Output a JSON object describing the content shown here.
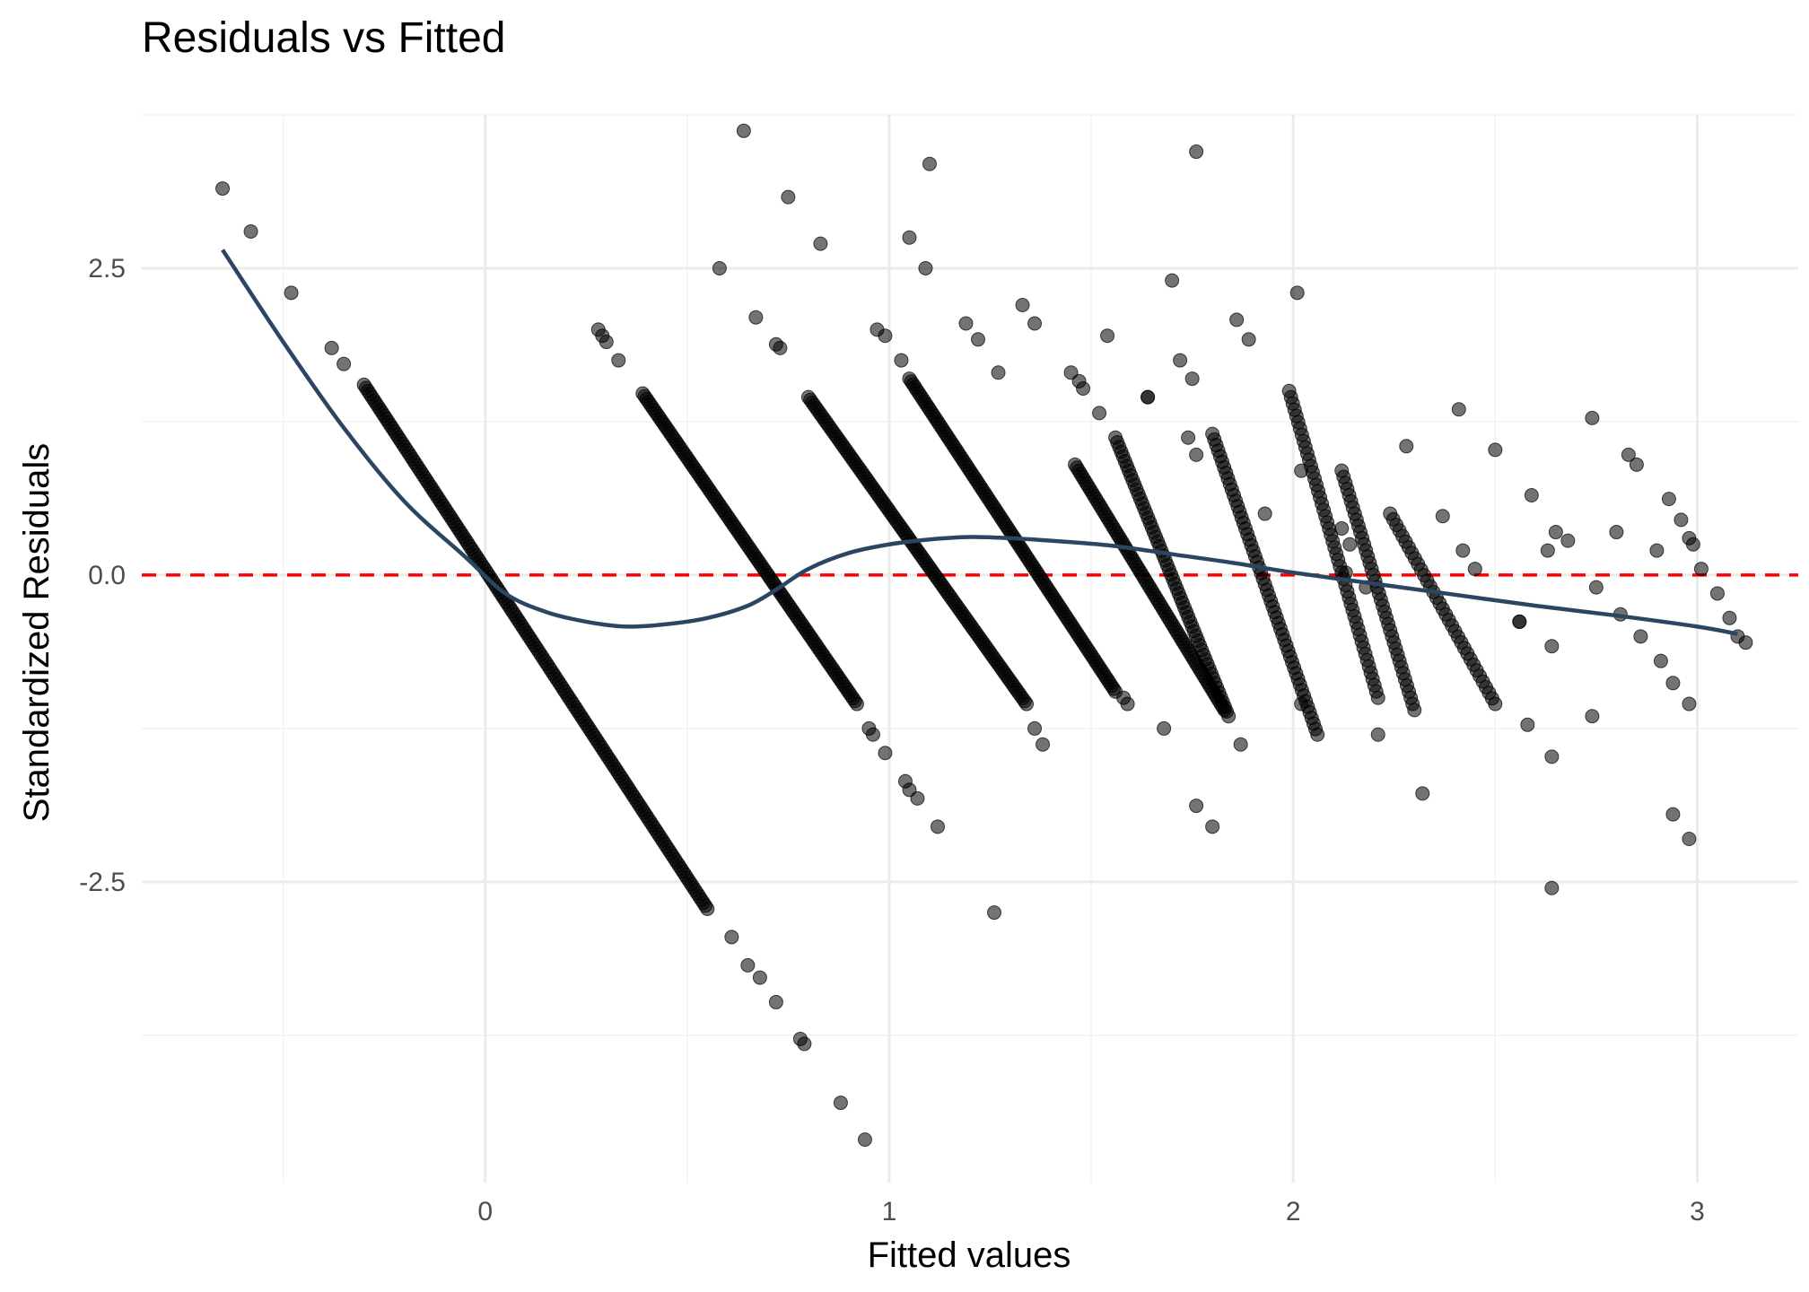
{
  "chart_data": {
    "type": "scatter",
    "title": "Residuals vs Fitted",
    "xlabel": "Fitted values",
    "ylabel": "Standardized Residuals",
    "xlim": [
      -0.85,
      3.25
    ],
    "ylim": [
      -4.95,
      3.75
    ],
    "x_ticks": [
      0,
      1,
      2,
      3
    ],
    "x_tick_labels": [
      "0",
      "1",
      "2",
      "3"
    ],
    "y_ticks": [
      -2.5,
      0,
      2.5
    ],
    "y_tick_labels": [
      "-2.5",
      "0.0",
      "2.5"
    ],
    "grid": true,
    "legend": "none",
    "colors": {
      "points": "#000000",
      "smooth_line": "#2c4563",
      "reference_line": "#ff0000",
      "grid": "#ebebeb"
    },
    "reference_line": {
      "y": 0,
      "style": "dashed"
    },
    "bands": [
      {
        "x0": -0.3,
        "y0": 1.55,
        "x1": 0.55,
        "y1": -2.72,
        "n": 170,
        "extra": [
          [
            -0.65,
            3.15
          ],
          [
            -0.58,
            2.8
          ],
          [
            -0.48,
            2.3
          ],
          [
            -0.38,
            1.85
          ],
          [
            -0.35,
            1.72
          ],
          [
            0.61,
            -2.95
          ],
          [
            0.65,
            -3.18
          ],
          [
            0.68,
            -3.28
          ],
          [
            0.72,
            -3.48
          ],
          [
            0.78,
            -3.78
          ],
          [
            0.79,
            -3.82
          ],
          [
            0.88,
            -4.3
          ],
          [
            0.94,
            -4.6
          ]
        ]
      },
      {
        "x0": 0.39,
        "y0": 1.48,
        "x1": 0.92,
        "y1": -1.05,
        "n": 110,
        "extra": [
          [
            0.28,
            2.0
          ],
          [
            0.29,
            1.95
          ],
          [
            0.3,
            1.9
          ],
          [
            0.33,
            1.75
          ],
          [
            0.58,
            2.5
          ],
          [
            0.64,
            3.62
          ],
          [
            0.67,
            2.1
          ],
          [
            0.72,
            1.88
          ],
          [
            0.73,
            1.85
          ],
          [
            0.75,
            3.08
          ],
          [
            0.95,
            -1.25
          ],
          [
            0.96,
            -1.3
          ],
          [
            0.99,
            -1.45
          ],
          [
            1.04,
            -1.68
          ],
          [
            1.05,
            -1.75
          ],
          [
            1.07,
            -1.82
          ],
          [
            1.12,
            -2.05
          ]
        ]
      },
      {
        "x0": 0.8,
        "y0": 1.45,
        "x1": 1.34,
        "y1": -1.05,
        "n": 110,
        "extra": [
          [
            0.83,
            2.7
          ],
          [
            0.97,
            2.0
          ],
          [
            0.99,
            1.95
          ],
          [
            1.03,
            1.75
          ],
          [
            1.05,
            2.75
          ],
          [
            1.09,
            2.5
          ],
          [
            1.1,
            3.35
          ],
          [
            1.36,
            -1.25
          ],
          [
            1.38,
            -1.38
          ],
          [
            1.26,
            -2.75
          ]
        ]
      },
      {
        "x0": 1.05,
        "y0": 1.6,
        "x1": 1.56,
        "y1": -0.95,
        "n": 110,
        "extra": [
          [
            1.19,
            2.05
          ],
          [
            1.22,
            1.92
          ],
          [
            1.27,
            1.65
          ],
          [
            1.33,
            2.2
          ],
          [
            1.36,
            2.05
          ],
          [
            1.45,
            1.65
          ],
          [
            1.47,
            1.58
          ],
          [
            1.48,
            1.52
          ],
          [
            1.58,
            -1.0
          ],
          [
            1.59,
            -1.05
          ]
        ]
      },
      {
        "x0": 1.46,
        "y0": 0.9,
        "x1": 1.83,
        "y1": -1.1,
        "n": 80,
        "extra": [
          [
            1.52,
            1.32
          ],
          [
            1.54,
            1.95
          ],
          [
            1.64,
            1.45
          ],
          [
            1.68,
            -1.25
          ],
          [
            1.7,
            2.4
          ],
          [
            1.72,
            1.75
          ],
          [
            1.75,
            1.6
          ],
          [
            1.76,
            3.45
          ],
          [
            1.76,
            -1.88
          ],
          [
            1.8,
            -2.05
          ]
        ]
      },
      {
        "x0": 1.56,
        "y0": 1.12,
        "x1": 1.84,
        "y1": -1.15,
        "n": 60,
        "extra": [
          [
            1.64,
            1.45
          ],
          [
            1.74,
            1.12
          ],
          [
            1.76,
            0.98
          ],
          [
            1.87,
            -1.38
          ],
          [
            1.86,
            2.08
          ],
          [
            1.89,
            1.92
          ]
        ]
      },
      {
        "x0": 1.8,
        "y0": 1.15,
        "x1": 2.06,
        "y1": -1.3,
        "n": 55,
        "extra": [
          [
            1.93,
            0.5
          ],
          [
            2.01,
            2.3
          ],
          [
            2.02,
            -1.05
          ]
        ]
      },
      {
        "x0": 1.99,
        "y0": 1.5,
        "x1": 2.21,
        "y1": -1.0,
        "n": 50,
        "extra": [
          [
            2.02,
            0.85
          ],
          [
            2.12,
            0.38
          ],
          [
            2.14,
            0.25
          ],
          [
            2.21,
            -1.3
          ]
        ]
      },
      {
        "x0": 2.12,
        "y0": 0.85,
        "x1": 2.3,
        "y1": -1.1,
        "n": 40,
        "extra": [
          [
            2.28,
            1.05
          ],
          [
            2.32,
            -1.78
          ]
        ]
      },
      {
        "x0": 2.24,
        "y0": 0.5,
        "x1": 2.5,
        "y1": -1.05,
        "n": 35,
        "extra": [
          [
            2.37,
            0.48
          ],
          [
            2.41,
            1.35
          ],
          [
            2.42,
            0.2
          ],
          [
            2.45,
            0.05
          ],
          [
            2.5,
            1.02
          ],
          [
            2.56,
            -0.38
          ],
          [
            2.58,
            -1.22
          ],
          [
            2.59,
            0.65
          ],
          [
            2.63,
            0.2
          ],
          [
            2.64,
            -0.58
          ],
          [
            2.65,
            0.35
          ],
          [
            2.68,
            0.28
          ],
          [
            2.64,
            -1.48
          ],
          [
            2.64,
            -2.55
          ],
          [
            2.74,
            1.28
          ],
          [
            2.75,
            -0.1
          ],
          [
            2.74,
            -1.15
          ],
          [
            2.8,
            0.35
          ],
          [
            2.81,
            -0.32
          ],
          [
            2.83,
            0.98
          ],
          [
            2.85,
            0.9
          ],
          [
            2.86,
            -0.5
          ],
          [
            2.9,
            0.2
          ],
          [
            2.91,
            -0.7
          ],
          [
            2.93,
            0.62
          ],
          [
            2.94,
            -0.88
          ],
          [
            2.96,
            0.45
          ],
          [
            2.98,
            0.3
          ],
          [
            2.99,
            0.25
          ],
          [
            2.98,
            -1.05
          ],
          [
            2.94,
            -1.95
          ],
          [
            2.98,
            -2.15
          ],
          [
            3.01,
            0.05
          ],
          [
            3.05,
            -0.15
          ],
          [
            3.08,
            -0.35
          ],
          [
            3.1,
            -0.5
          ],
          [
            3.12,
            -0.55
          ],
          [
            2.56,
            -0.38
          ],
          [
            2.18,
            -0.1
          ],
          [
            2.13,
            0.02
          ]
        ]
      }
    ],
    "smooth_line": [
      [
        -0.65,
        2.65
      ],
      [
        -0.5,
        1.9
      ],
      [
        -0.35,
        1.2
      ],
      [
        -0.2,
        0.6
      ],
      [
        -0.05,
        0.15
      ],
      [
        0.05,
        -0.15
      ],
      [
        0.15,
        -0.3
      ],
      [
        0.25,
        -0.38
      ],
      [
        0.35,
        -0.42
      ],
      [
        0.45,
        -0.4
      ],
      [
        0.55,
        -0.35
      ],
      [
        0.65,
        -0.25
      ],
      [
        0.72,
        -0.12
      ],
      [
        0.8,
        0.05
      ],
      [
        0.9,
        0.18
      ],
      [
        1.0,
        0.25
      ],
      [
        1.1,
        0.29
      ],
      [
        1.2,
        0.31
      ],
      [
        1.3,
        0.3
      ],
      [
        1.4,
        0.28
      ],
      [
        1.55,
        0.24
      ],
      [
        1.7,
        0.17
      ],
      [
        1.85,
        0.1
      ],
      [
        2.0,
        0.02
      ],
      [
        2.2,
        -0.07
      ],
      [
        2.4,
        -0.16
      ],
      [
        2.6,
        -0.25
      ],
      [
        2.8,
        -0.33
      ],
      [
        3.0,
        -0.42
      ],
      [
        3.1,
        -0.48
      ]
    ]
  }
}
